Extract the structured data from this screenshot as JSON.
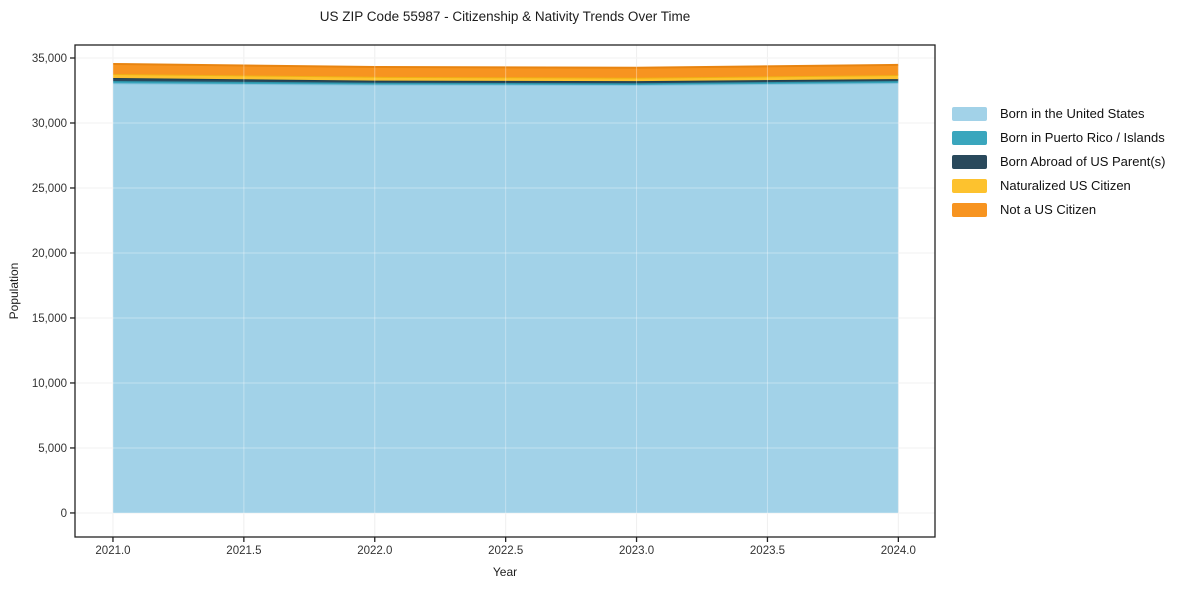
{
  "title": "US ZIP Code 55987 - Citizenship & Nativity Trends Over Time",
  "chart_data": {
    "type": "area",
    "stacked": true,
    "title": "US ZIP Code 55987 - Citizenship & Nativity Trends Over Time",
    "xlabel": "Year",
    "ylabel": "Population",
    "x": [
      2021,
      2022,
      2023,
      2024
    ],
    "series": [
      {
        "name": "Born in the United States",
        "color": "#a2d2e8",
        "line_color": "#8ac3dd",
        "values": [
          33050,
          32950,
          32920,
          33080
        ]
      },
      {
        "name": "Born in Puerto Rico / Islands",
        "color": "#3aa6bd",
        "line_color": "#2d93a8",
        "values": [
          180,
          150,
          140,
          150
        ]
      },
      {
        "name": "Born Abroad of US Parent(s)",
        "color": "#29495c",
        "line_color": "#1f3d4e",
        "values": [
          230,
          160,
          160,
          150
        ]
      },
      {
        "name": "Naturalized US Citizen",
        "color": "#fdc22e",
        "line_color": "#f0b114",
        "values": [
          310,
          290,
          260,
          310
        ]
      },
      {
        "name": "Not a US Citizen",
        "color": "#f79420",
        "line_color": "#e88410",
        "values": [
          770,
          760,
          770,
          780
        ]
      }
    ],
    "x_ticks": [
      2021.0,
      2021.5,
      2022.0,
      2022.5,
      2023.0,
      2023.5,
      2024.0
    ],
    "y_ticks": [
      0,
      5000,
      10000,
      15000,
      20000,
      25000,
      30000,
      35000
    ],
    "x_range": [
      2020.855,
      2024.14
    ],
    "y_range": [
      -1850,
      36000
    ],
    "grid": true,
    "legend_position": "right",
    "grid_color": "#e9e9e9",
    "border_color": "#222222",
    "tick_label_color": "#333333"
  }
}
